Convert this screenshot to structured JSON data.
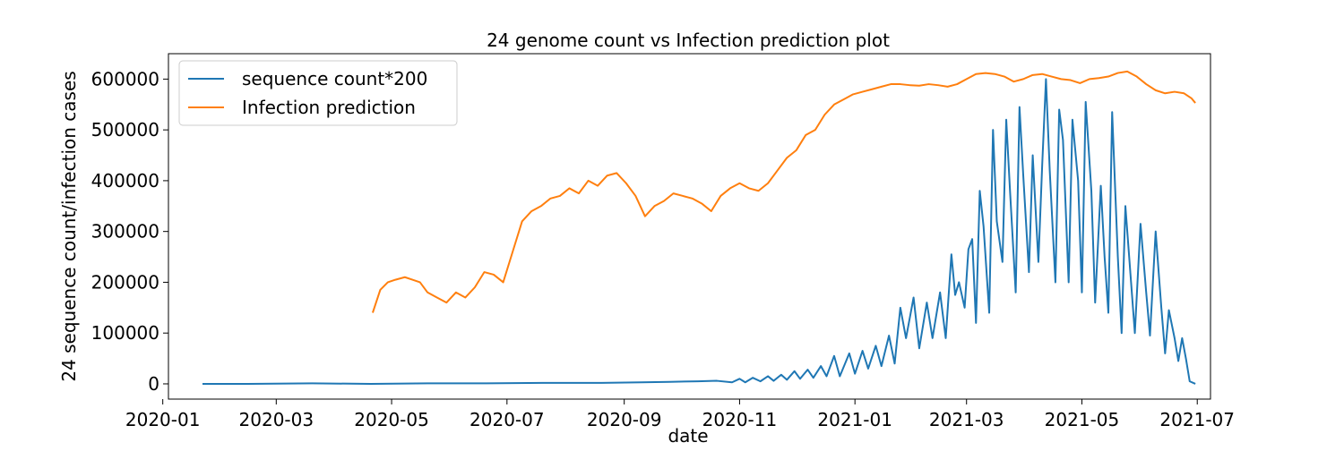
{
  "chart_data": {
    "type": "line",
    "title": "24 genome count vs Infection prediction plot",
    "xlabel": "date",
    "ylabel": "24 sequence count/infection cases",
    "x_ticks": [
      "2020-01",
      "2020-03",
      "2020-05",
      "2020-07",
      "2020-09",
      "2020-11",
      "2021-01",
      "2021-03",
      "2021-05",
      "2021-07"
    ],
    "y_ticks": [
      0,
      100000,
      200000,
      300000,
      400000,
      500000,
      600000
    ],
    "xlim": [
      "2020-01-04",
      "2021-07-08"
    ],
    "ylim": [
      -30000,
      650000
    ],
    "grid": false,
    "legend_position": "upper left",
    "series": [
      {
        "name": "sequence count*200",
        "color": "#1f77b4",
        "points": [
          [
            "2020-01-22",
            0
          ],
          [
            "2020-02-15",
            0
          ],
          [
            "2020-03-20",
            1000
          ],
          [
            "2020-04-20",
            0
          ],
          [
            "2020-05-20",
            1000
          ],
          [
            "2020-06-20",
            1000
          ],
          [
            "2020-07-20",
            2000
          ],
          [
            "2020-08-20",
            2000
          ],
          [
            "2020-09-10",
            3000
          ],
          [
            "2020-09-25",
            4000
          ],
          [
            "2020-10-10",
            5000
          ],
          [
            "2020-10-20",
            6000
          ],
          [
            "2020-10-28",
            3000
          ],
          [
            "2020-11-01",
            10000
          ],
          [
            "2020-11-04",
            3000
          ],
          [
            "2020-11-08",
            12000
          ],
          [
            "2020-11-12",
            5000
          ],
          [
            "2020-11-16",
            15000
          ],
          [
            "2020-11-19",
            6000
          ],
          [
            "2020-11-23",
            18000
          ],
          [
            "2020-11-26",
            8000
          ],
          [
            "2020-11-30",
            25000
          ],
          [
            "2020-12-03",
            10000
          ],
          [
            "2020-12-07",
            28000
          ],
          [
            "2020-12-10",
            12000
          ],
          [
            "2020-12-14",
            35000
          ],
          [
            "2020-12-17",
            15000
          ],
          [
            "2020-12-21",
            55000
          ],
          [
            "2020-12-24",
            15000
          ],
          [
            "2020-12-29",
            60000
          ],
          [
            "2021-01-01",
            20000
          ],
          [
            "2021-01-05",
            65000
          ],
          [
            "2021-01-08",
            30000
          ],
          [
            "2021-01-12",
            75000
          ],
          [
            "2021-01-15",
            35000
          ],
          [
            "2021-01-19",
            95000
          ],
          [
            "2021-01-22",
            40000
          ],
          [
            "2021-01-25",
            150000
          ],
          [
            "2021-01-28",
            90000
          ],
          [
            "2021-02-01",
            170000
          ],
          [
            "2021-02-04",
            70000
          ],
          [
            "2021-02-08",
            160000
          ],
          [
            "2021-02-11",
            90000
          ],
          [
            "2021-02-15",
            180000
          ],
          [
            "2021-02-18",
            90000
          ],
          [
            "2021-02-21",
            255000
          ],
          [
            "2021-02-23",
            175000
          ],
          [
            "2021-02-25",
            200000
          ],
          [
            "2021-02-28",
            150000
          ],
          [
            "2021-03-02",
            265000
          ],
          [
            "2021-03-04",
            285000
          ],
          [
            "2021-03-06",
            120000
          ],
          [
            "2021-03-08",
            380000
          ],
          [
            "2021-03-10",
            310000
          ],
          [
            "2021-03-13",
            140000
          ],
          [
            "2021-03-15",
            500000
          ],
          [
            "2021-03-17",
            320000
          ],
          [
            "2021-03-20",
            240000
          ],
          [
            "2021-03-22",
            520000
          ],
          [
            "2021-03-24",
            380000
          ],
          [
            "2021-03-27",
            180000
          ],
          [
            "2021-03-29",
            545000
          ],
          [
            "2021-03-31",
            410000
          ],
          [
            "2021-04-03",
            220000
          ],
          [
            "2021-04-05",
            450000
          ],
          [
            "2021-04-08",
            240000
          ],
          [
            "2021-04-10",
            430000
          ],
          [
            "2021-04-12",
            600000
          ],
          [
            "2021-04-14",
            420000
          ],
          [
            "2021-04-17",
            200000
          ],
          [
            "2021-04-19",
            540000
          ],
          [
            "2021-04-21",
            480000
          ],
          [
            "2021-04-24",
            200000
          ],
          [
            "2021-04-26",
            520000
          ],
          [
            "2021-04-29",
            400000
          ],
          [
            "2021-05-01",
            180000
          ],
          [
            "2021-05-03",
            555000
          ],
          [
            "2021-05-06",
            380000
          ],
          [
            "2021-05-08",
            160000
          ],
          [
            "2021-05-11",
            390000
          ],
          [
            "2021-05-13",
            250000
          ],
          [
            "2021-05-15",
            140000
          ],
          [
            "2021-05-17",
            535000
          ],
          [
            "2021-05-20",
            250000
          ],
          [
            "2021-05-22",
            100000
          ],
          [
            "2021-05-24",
            350000
          ],
          [
            "2021-05-27",
            200000
          ],
          [
            "2021-05-29",
            100000
          ],
          [
            "2021-06-01",
            315000
          ],
          [
            "2021-06-04",
            180000
          ],
          [
            "2021-06-06",
            95000
          ],
          [
            "2021-06-09",
            300000
          ],
          [
            "2021-06-12",
            150000
          ],
          [
            "2021-06-14",
            60000
          ],
          [
            "2021-06-16",
            145000
          ],
          [
            "2021-06-19",
            90000
          ],
          [
            "2021-06-21",
            45000
          ],
          [
            "2021-06-23",
            90000
          ],
          [
            "2021-06-25",
            50000
          ],
          [
            "2021-06-27",
            5000
          ],
          [
            "2021-06-30",
            0
          ]
        ]
      },
      {
        "name": "Infection prediction",
        "color": "#ff7f0e",
        "points": [
          [
            "2020-04-21",
            140000
          ],
          [
            "2020-04-25",
            185000
          ],
          [
            "2020-04-29",
            200000
          ],
          [
            "2020-05-03",
            205000
          ],
          [
            "2020-05-08",
            210000
          ],
          [
            "2020-05-12",
            205000
          ],
          [
            "2020-05-16",
            200000
          ],
          [
            "2020-05-20",
            180000
          ],
          [
            "2020-05-25",
            170000
          ],
          [
            "2020-05-30",
            160000
          ],
          [
            "2020-06-04",
            180000
          ],
          [
            "2020-06-09",
            170000
          ],
          [
            "2020-06-14",
            190000
          ],
          [
            "2020-06-19",
            220000
          ],
          [
            "2020-06-24",
            215000
          ],
          [
            "2020-06-29",
            200000
          ],
          [
            "2020-07-04",
            260000
          ],
          [
            "2020-07-09",
            320000
          ],
          [
            "2020-07-14",
            340000
          ],
          [
            "2020-07-19",
            350000
          ],
          [
            "2020-07-24",
            365000
          ],
          [
            "2020-07-29",
            370000
          ],
          [
            "2020-08-03",
            385000
          ],
          [
            "2020-08-08",
            375000
          ],
          [
            "2020-08-13",
            400000
          ],
          [
            "2020-08-18",
            390000
          ],
          [
            "2020-08-23",
            410000
          ],
          [
            "2020-08-28",
            415000
          ],
          [
            "2020-09-02",
            395000
          ],
          [
            "2020-09-07",
            370000
          ],
          [
            "2020-09-12",
            330000
          ],
          [
            "2020-09-17",
            350000
          ],
          [
            "2020-09-22",
            360000
          ],
          [
            "2020-09-27",
            375000
          ],
          [
            "2020-10-02",
            370000
          ],
          [
            "2020-10-07",
            365000
          ],
          [
            "2020-10-12",
            355000
          ],
          [
            "2020-10-17",
            340000
          ],
          [
            "2020-10-22",
            370000
          ],
          [
            "2020-10-27",
            385000
          ],
          [
            "2020-11-01",
            395000
          ],
          [
            "2020-11-06",
            385000
          ],
          [
            "2020-11-11",
            380000
          ],
          [
            "2020-11-16",
            395000
          ],
          [
            "2020-11-21",
            420000
          ],
          [
            "2020-11-26",
            445000
          ],
          [
            "2020-12-01",
            460000
          ],
          [
            "2020-12-06",
            490000
          ],
          [
            "2020-12-11",
            500000
          ],
          [
            "2020-12-16",
            530000
          ],
          [
            "2020-12-21",
            550000
          ],
          [
            "2020-12-26",
            560000
          ],
          [
            "2020-12-31",
            570000
          ],
          [
            "2021-01-05",
            575000
          ],
          [
            "2021-01-10",
            580000
          ],
          [
            "2021-01-15",
            585000
          ],
          [
            "2021-01-20",
            590000
          ],
          [
            "2021-01-25",
            590000
          ],
          [
            "2021-01-30",
            588000
          ],
          [
            "2021-02-04",
            587000
          ],
          [
            "2021-02-09",
            590000
          ],
          [
            "2021-02-14",
            588000
          ],
          [
            "2021-02-19",
            585000
          ],
          [
            "2021-02-24",
            590000
          ],
          [
            "2021-03-01",
            600000
          ],
          [
            "2021-03-06",
            610000
          ],
          [
            "2021-03-11",
            612000
          ],
          [
            "2021-03-16",
            610000
          ],
          [
            "2021-03-21",
            605000
          ],
          [
            "2021-03-26",
            595000
          ],
          [
            "2021-03-31",
            600000
          ],
          [
            "2021-04-05",
            608000
          ],
          [
            "2021-04-10",
            610000
          ],
          [
            "2021-04-15",
            605000
          ],
          [
            "2021-04-20",
            600000
          ],
          [
            "2021-04-25",
            598000
          ],
          [
            "2021-04-30",
            592000
          ],
          [
            "2021-05-05",
            600000
          ],
          [
            "2021-05-10",
            602000
          ],
          [
            "2021-05-15",
            605000
          ],
          [
            "2021-05-20",
            612000
          ],
          [
            "2021-05-25",
            615000
          ],
          [
            "2021-05-30",
            605000
          ],
          [
            "2021-06-04",
            590000
          ],
          [
            "2021-06-09",
            578000
          ],
          [
            "2021-06-14",
            572000
          ],
          [
            "2021-06-19",
            575000
          ],
          [
            "2021-06-24",
            572000
          ],
          [
            "2021-06-28",
            562000
          ],
          [
            "2021-06-30",
            553000
          ]
        ]
      }
    ]
  }
}
